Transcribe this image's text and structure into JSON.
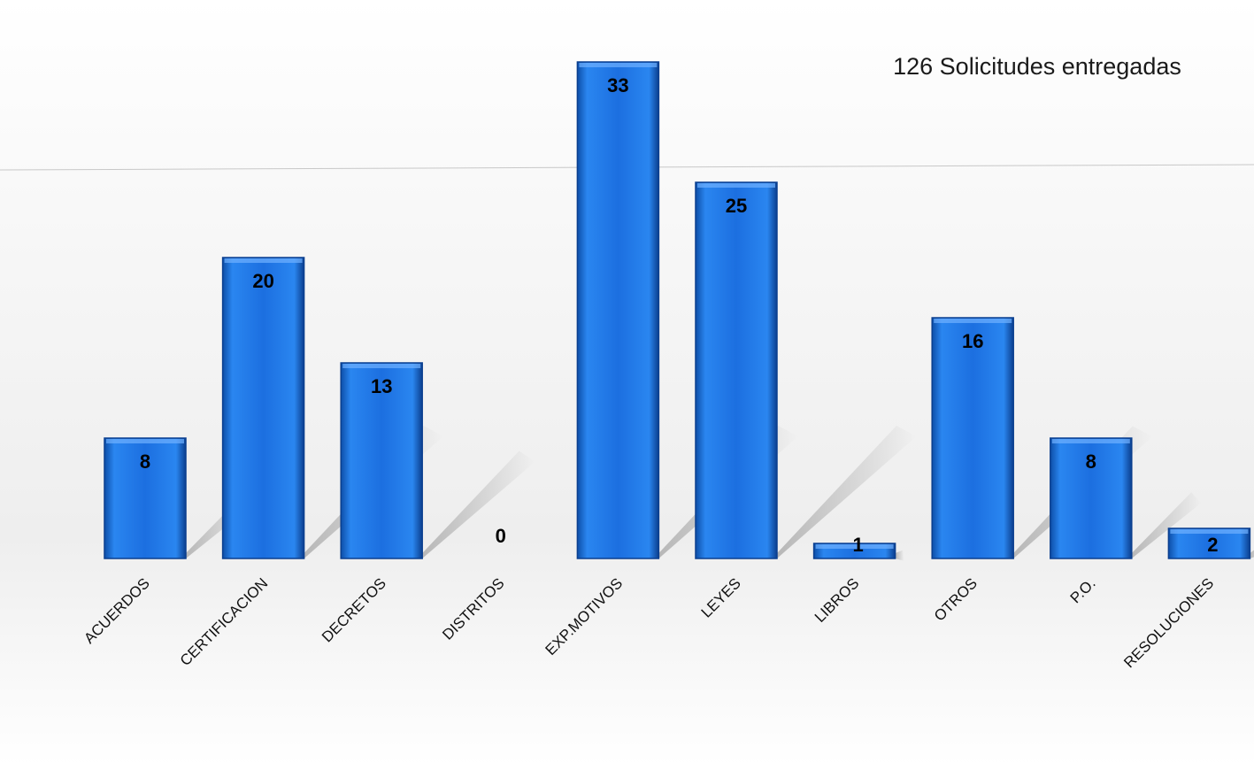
{
  "chart_data": {
    "type": "bar",
    "title": "126 Solicitudes entregadas",
    "categories": [
      "ACUERDOS",
      "CERTIFICACION",
      "DECRETOS",
      "DISTRITOS",
      "EXP.MOTIVOS",
      "LEYES",
      "LIBROS",
      "OTROS",
      "P.O.",
      "RESOLUCIONES"
    ],
    "values": [
      8,
      20,
      13,
      0,
      33,
      25,
      1,
      16,
      8,
      2
    ],
    "data_labels": [
      "8",
      "20",
      "13",
      "0",
      "33",
      "25",
      "1",
      "16",
      "8",
      "2"
    ],
    "ylim": [
      0,
      33
    ],
    "grid": false,
    "legend": "none",
    "bar_color": "#1e6fd9",
    "bar_edge_color": "#0b3f8f"
  }
}
